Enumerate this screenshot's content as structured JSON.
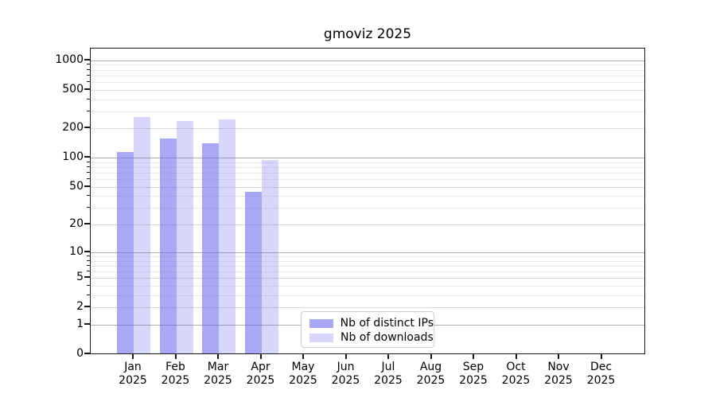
{
  "chart_data": {
    "type": "bar",
    "title": "gmoviz 2025",
    "categories": [
      "Jan",
      "Feb",
      "Mar",
      "Apr",
      "May",
      "Jun",
      "Jul",
      "Aug",
      "Sep",
      "Oct",
      "Nov",
      "Dec"
    ],
    "category_year": "2025",
    "series": [
      {
        "name": "Nb of distinct IPs",
        "color": "rgba(102,102,238,0.57)",
        "values": [
          115,
          157,
          142,
          44,
          0,
          0,
          0,
          0,
          0,
          0,
          0,
          0
        ]
      },
      {
        "name": "Nb of downloads",
        "color": "rgba(102,102,238,0.26)",
        "values": [
          263,
          238,
          250,
          95,
          0,
          0,
          0,
          0,
          0,
          0,
          0,
          0
        ]
      }
    ],
    "y_scale": "log1p",
    "y_ticks": [
      1000,
      500,
      200,
      100,
      50,
      20,
      10,
      5,
      2,
      1,
      0
    ],
    "ylim": [
      0,
      1300
    ],
    "grid": "both",
    "legend_position": "lower-center"
  },
  "colors": {
    "grid_major": "#b0b0b0",
    "grid_mid": "#d8d8d8",
    "grid_minor": "#ebebeb",
    "spine": "#1a1a1a",
    "background": "#ffffff",
    "legend_border": "#cccccc"
  }
}
